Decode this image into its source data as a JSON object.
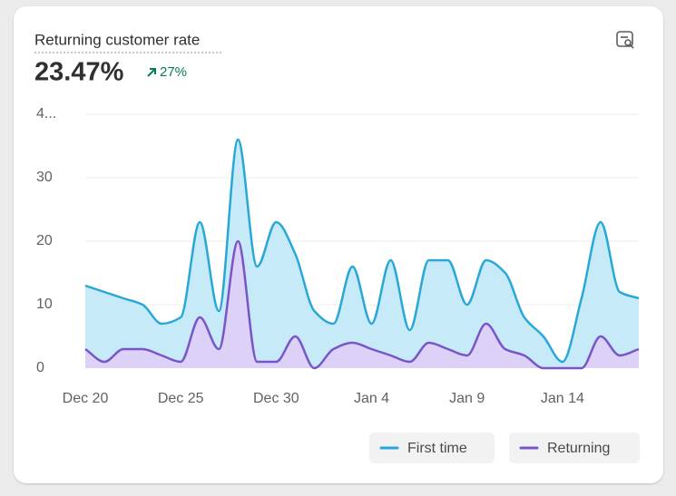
{
  "chart_data": {
    "type": "area",
    "title": "Returning customer rate",
    "metric": "23.47%",
    "change": "27%",
    "categories": [
      "Dec 20",
      null,
      null,
      null,
      null,
      "Dec 25",
      null,
      null,
      null,
      null,
      "Dec 30",
      null,
      null,
      null,
      null,
      "Jan 4",
      null,
      null,
      null,
      null,
      "Jan 9",
      null,
      null,
      null,
      null,
      "Jan 14",
      null,
      null,
      null,
      null
    ],
    "series": [
      {
        "name": "First time",
        "color": "#29a8d8",
        "fill": "#c6eaf8",
        "values": [
          13,
          12,
          11,
          10,
          7,
          8,
          23,
          9,
          36,
          16,
          23,
          18,
          9,
          7,
          16,
          7,
          17,
          6,
          17,
          17,
          10,
          17,
          15,
          8,
          5,
          1,
          11,
          23,
          12,
          11
        ]
      },
      {
        "name": "Returning",
        "color": "#7a55c7",
        "fill": "#dcd1f6",
        "values": [
          3,
          1,
          3,
          3,
          2,
          1,
          8,
          3,
          20,
          1,
          1,
          5,
          0,
          3,
          4,
          3,
          2,
          1,
          4,
          3,
          2,
          7,
          3,
          2,
          0,
          0,
          0,
          5,
          2,
          3
        ]
      }
    ],
    "ylim": [
      0,
      40
    ],
    "yticks": [
      0,
      10,
      20,
      30,
      {
        "value": 40,
        "label": "4..."
      }
    ],
    "grid": true
  }
}
